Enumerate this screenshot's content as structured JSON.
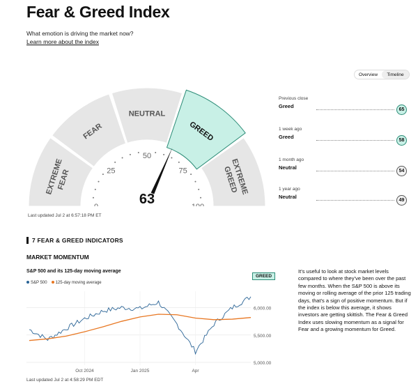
{
  "header": {
    "title": "Fear & Greed Index",
    "subtitle": "What emotion is driving the market now?",
    "learn_link": "Learn more about the index"
  },
  "view_toggle": {
    "options": [
      "Overview",
      "Timeline"
    ],
    "selected": "Timeline"
  },
  "gauge": {
    "value": 63,
    "zones": [
      "EXTREME FEAR",
      "FEAR",
      "NEUTRAL",
      "GREED",
      "EXTREME GREED"
    ],
    "active_zone": "GREED",
    "scale_labels": [
      "0",
      "25",
      "50",
      "75",
      "100"
    ],
    "last_updated": "Last updated Jul 2 at 6:57:18 PM ET",
    "colors": {
      "active": "#c8f0e6",
      "active_border": "#2c8c77",
      "zone": "#e6e6e6"
    }
  },
  "history": [
    {
      "label": "Previous close",
      "rating": "Greed",
      "value": "65",
      "kind": "greed"
    },
    {
      "label": "1 week ago",
      "rating": "Greed",
      "value": "58",
      "kind": "greed"
    },
    {
      "label": "1 month ago",
      "rating": "Neutral",
      "value": "54",
      "kind": "neutral"
    },
    {
      "label": "1 year ago",
      "rating": "Neutral",
      "value": "49",
      "kind": "neutral"
    }
  ],
  "indicators": {
    "section_title": "7 FEAR & GREED INDICATORS",
    "current": {
      "name": "MARKET MOMENTUM",
      "chart_title": "S&P 500 and its 125-day moving average",
      "rating": "GREED",
      "chart_updated": "Last updated Jul 2 at 4:58:29 PM EDT",
      "description": "It’s useful to look at stock market levels compared to where they’ve been over the past few months. When the S&P 500 is above its moving or rolling average of the prior 125 trading days, that’s a sign of positive momentum. But if the index is below this average, it shows investors are getting skittish. The Fear & Greed Index uses slowing momentum as a signal for Fear and a growing momentum for Greed."
    }
  },
  "chart_data": {
    "type": "line",
    "x": [
      "Jul 2024",
      "Aug 2024",
      "Sep 2024",
      "Oct 2024",
      "Nov 2024",
      "Dec 2024",
      "Jan 2025",
      "Feb 2025",
      "Mar 2025",
      "Apr 2025",
      "May 2025",
      "Jun 2025",
      "Jul 2025"
    ],
    "x_tick_labels": [
      "Oct 2024",
      "Jan 2025",
      "Apr"
    ],
    "y_tick_labels": [
      "5,000.00",
      "5,500.00",
      "6,000.00"
    ],
    "ylim": [
      4950,
      6300
    ],
    "series": [
      {
        "name": "S&P 500",
        "color": "#2a6496",
        "values": [
          5600,
          5420,
          5620,
          5800,
          5940,
          6000,
          5980,
          6100,
          5700,
          5200,
          5700,
          6000,
          6200
        ]
      },
      {
        "name": "125-day moving average",
        "color": "#e87722",
        "values": [
          5400,
          5430,
          5480,
          5560,
          5650,
          5750,
          5830,
          5880,
          5870,
          5810,
          5780,
          5790,
          5820
        ]
      }
    ]
  }
}
